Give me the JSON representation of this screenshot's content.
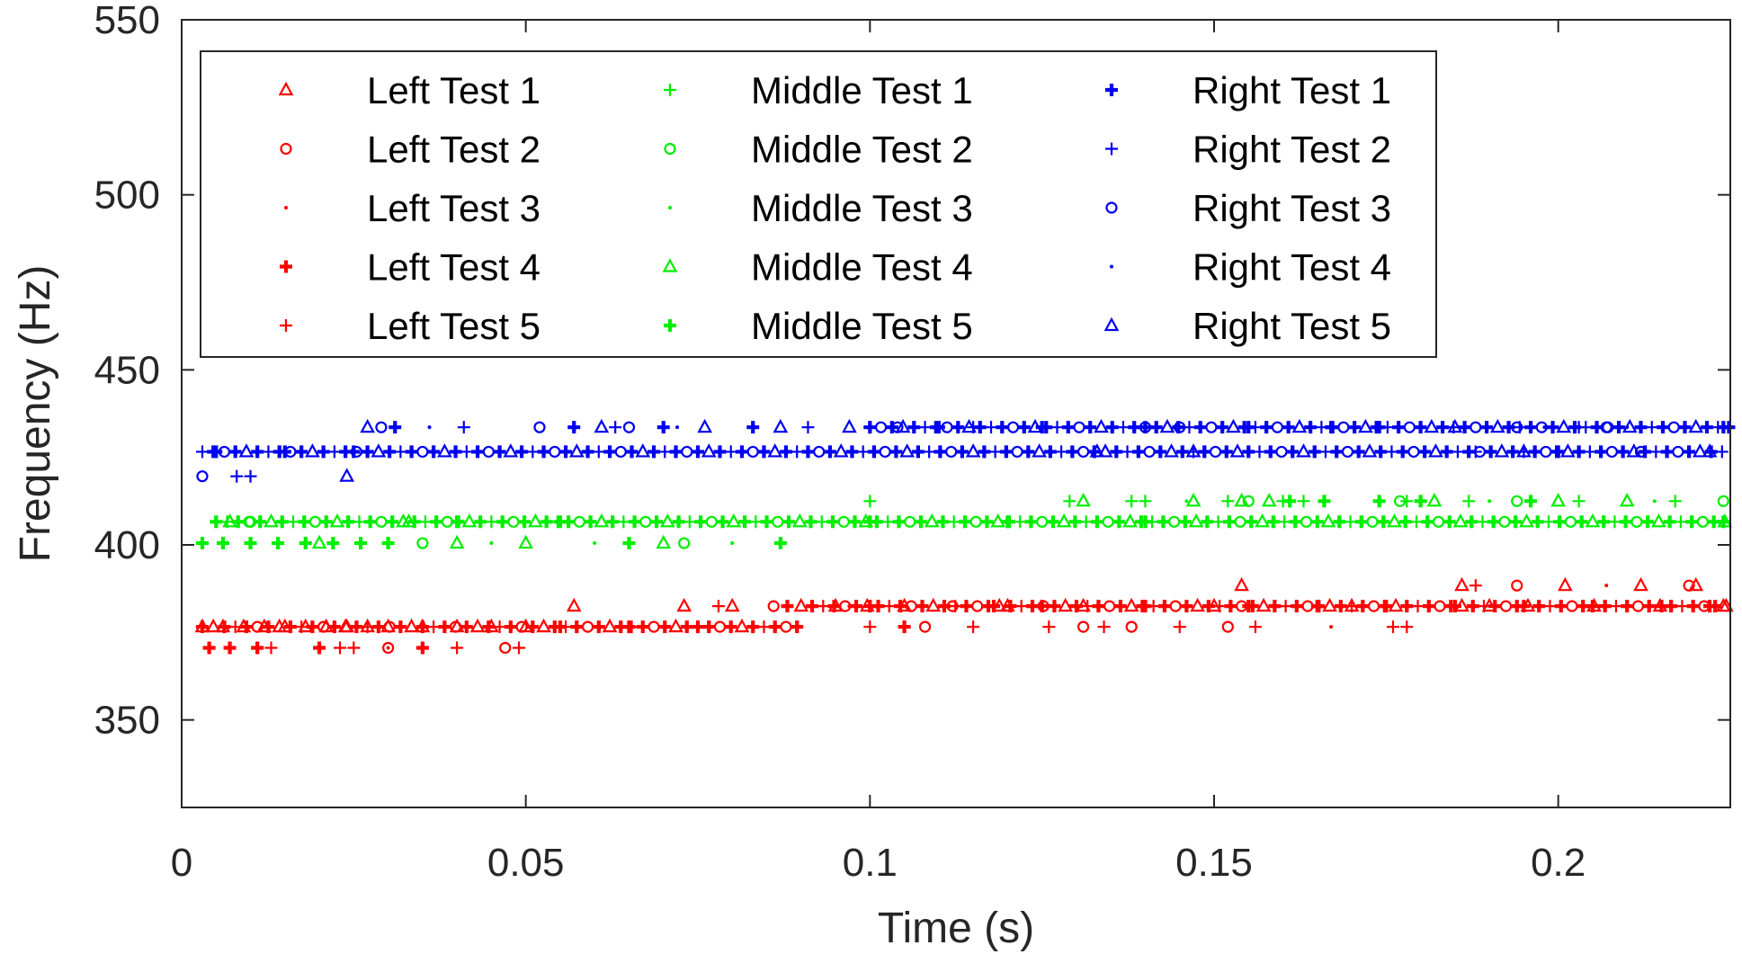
{
  "chart_data": {
    "type": "scatter",
    "title": "",
    "xlabel": "Time (s)",
    "ylabel": "Frequency (Hz)",
    "xlim": [
      0,
      0.225
    ],
    "ylim": [
      325,
      550
    ],
    "xticks": [
      0,
      0.05,
      0.1,
      0.15,
      0.2
    ],
    "xtick_labels": [
      "0",
      "0.05",
      "0.1",
      "0.15",
      "0.2"
    ],
    "yticks": [
      350,
      400,
      450,
      500,
      550
    ],
    "ytick_labels": [
      "350",
      "400",
      "450",
      "500",
      "550"
    ],
    "grid": false,
    "legend_position": "top-left, inside, 3 columns",
    "colors": {
      "left": "#ff0000",
      "middle": "#00ee00",
      "right": "#0000ee",
      "axis": "#262626"
    },
    "series": [
      {
        "name": "Left Test 1",
        "group": "left",
        "marker": "triangle",
        "x": [
          0.003,
          0.006,
          0.009,
          0.012,
          0.015,
          0.018,
          0.021,
          0.024,
          0.027,
          0.03,
          0.035,
          0.04,
          0.045,
          0.05,
          0.057,
          0.073,
          0.08,
          0.095,
          0.105,
          0.12,
          0.131,
          0.15,
          0.154,
          0.17,
          0.186,
          0.19,
          0.201,
          0.212,
          0.22,
          0.224
        ],
        "y": [
          376.6,
          376.6,
          376.6,
          376.6,
          376.6,
          376.6,
          376.6,
          376.6,
          376.6,
          376.6,
          376.6,
          376.6,
          376.6,
          376.6,
          382.5,
          382.5,
          382.5,
          382.5,
          382.5,
          382.5,
          382.5,
          382.5,
          388.4,
          382.5,
          388.4,
          382.5,
          388.4,
          388.4,
          388.4,
          382.5
        ]
      },
      {
        "name": "Left Test 2",
        "group": "left",
        "marker": "circle",
        "x": [
          0.03,
          0.047,
          0.086,
          0.108,
          0.112,
          0.131,
          0.138,
          0.152,
          0.194,
          0.219
        ],
        "y": [
          370.6,
          370.6,
          382.5,
          376.6,
          382.5,
          376.6,
          376.6,
          376.6,
          388.4,
          388.4
        ]
      },
      {
        "name": "Left Test 3",
        "group": "left",
        "marker": "point",
        "x": [
          0.03,
          0.097,
          0.117,
          0.129,
          0.143,
          0.167,
          0.207
        ],
        "y": [
          370.6,
          382.5,
          382.5,
          382.5,
          382.5,
          376.6,
          388.4
        ]
      },
      {
        "name": "Left Test 4",
        "group": "left",
        "marker": "plus-bold",
        "x": [
          0.004,
          0.007,
          0.011,
          0.02,
          0.035,
          0.055,
          0.065,
          0.075,
          0.088,
          0.1,
          0.105,
          0.118,
          0.125,
          0.14,
          0.155,
          0.165,
          0.175,
          0.185,
          0.195,
          0.205,
          0.215,
          0.222
        ],
        "y": [
          370.6,
          370.6,
          370.6,
          370.6,
          370.6,
          376.6,
          376.6,
          376.6,
          382.5,
          382.5,
          376.6,
          382.5,
          382.5,
          382.5,
          382.5,
          382.5,
          382.5,
          382.5,
          382.5,
          382.5,
          382.5,
          382.5
        ]
      },
      {
        "name": "Left Test 5",
        "group": "left",
        "marker": "plus",
        "x": [
          0.013,
          0.023,
          0.025,
          0.04,
          0.049,
          0.078,
          0.1,
          0.115,
          0.126,
          0.134,
          0.145,
          0.156,
          0.176,
          0.178,
          0.188
        ],
        "y": [
          370.6,
          370.6,
          370.6,
          370.6,
          370.6,
          382.5,
          376.6,
          376.6,
          376.6,
          376.6,
          376.6,
          376.6,
          376.6,
          376.6,
          388.4
        ]
      },
      {
        "name": "Middle Test 1",
        "group": "middle",
        "marker": "plus",
        "x": [
          0.1,
          0.129,
          0.138,
          0.14,
          0.152,
          0.16,
          0.163,
          0.178,
          0.187,
          0.203,
          0.217
        ],
        "y": [
          412.5,
          412.5,
          412.5,
          412.5,
          412.5,
          412.5,
          412.5,
          412.5,
          412.5,
          412.5,
          412.5
        ]
      },
      {
        "name": "Middle Test 2",
        "group": "middle",
        "marker": "circle",
        "x": [
          0.01,
          0.035,
          0.073,
          0.155,
          0.177,
          0.194,
          0.224
        ],
        "y": [
          406.6,
          400.5,
          400.5,
          412.5,
          412.5,
          412.5,
          412.5
        ]
      },
      {
        "name": "Middle Test 3",
        "group": "middle",
        "marker": "point",
        "x": [
          0.045,
          0.06,
          0.08,
          0.146,
          0.19,
          0.214
        ],
        "y": [
          400.5,
          400.5,
          400.5,
          412.5,
          412.5,
          412.5
        ]
      },
      {
        "name": "Middle Test 4",
        "group": "middle",
        "marker": "triangle",
        "x": [
          0.007,
          0.02,
          0.033,
          0.04,
          0.05,
          0.07,
          0.131,
          0.147,
          0.154,
          0.158,
          0.182,
          0.2,
          0.21
        ],
        "y": [
          406.6,
          400.5,
          406.6,
          400.5,
          400.5,
          400.5,
          412.5,
          412.5,
          412.5,
          412.5,
          412.5,
          412.5,
          412.5
        ]
      },
      {
        "name": "Middle Test 5",
        "group": "middle",
        "marker": "plus-bold",
        "x": [
          0.003,
          0.006,
          0.01,
          0.014,
          0.018,
          0.022,
          0.026,
          0.03,
          0.04,
          0.055,
          0.065,
          0.087,
          0.1,
          0.12,
          0.14,
          0.161,
          0.166,
          0.174,
          0.18,
          0.196,
          0.224
        ],
        "y": [
          400.5,
          400.5,
          400.5,
          400.5,
          400.5,
          400.5,
          400.5,
          400.5,
          406.6,
          406.6,
          400.5,
          400.5,
          406.6,
          406.6,
          406.6,
          412.5,
          412.5,
          412.5,
          412.5,
          412.5,
          406.6
        ]
      },
      {
        "name": "Right Test 1",
        "group": "right",
        "marker": "plus-bold",
        "x": [
          0.005,
          0.015,
          0.025,
          0.031,
          0.057,
          0.07,
          0.083,
          0.11,
          0.125,
          0.14,
          0.155,
          0.167,
          0.174,
          0.2,
          0.224
        ],
        "y": [
          426.6,
          426.6,
          426.6,
          433.6,
          433.6,
          433.6,
          433.6,
          433.6,
          433.6,
          433.6,
          433.6,
          433.6,
          433.6,
          426.6,
          433.6
        ]
      },
      {
        "name": "Right Test 2",
        "group": "right",
        "marker": "plus",
        "x": [
          0.008,
          0.01,
          0.041,
          0.063,
          0.091,
          0.1,
          0.115,
          0.188,
          0.203
        ],
        "y": [
          419.6,
          419.6,
          433.6,
          433.6,
          433.6,
          433.6,
          433.6,
          426.6,
          433.6
        ]
      },
      {
        "name": "Right Test 3",
        "group": "right",
        "marker": "circle",
        "x": [
          0.003,
          0.029,
          0.052,
          0.065,
          0.104,
          0.145,
          0.194,
          0.207,
          0.212
        ],
        "y": [
          419.6,
          433.6,
          433.6,
          433.6,
          433.6,
          433.6,
          433.6,
          433.6,
          426.6
        ]
      },
      {
        "name": "Right Test 4",
        "group": "right",
        "marker": "point",
        "x": [
          0.036,
          0.072,
          0.12,
          0.18,
          0.198,
          0.21
        ],
        "y": [
          433.6,
          433.6,
          433.6,
          426.6,
          433.6,
          433.6
        ]
      },
      {
        "name": "Right Test 5",
        "group": "right",
        "marker": "triangle",
        "x": [
          0.024,
          0.027,
          0.061,
          0.076,
          0.087,
          0.097,
          0.133,
          0.147,
          0.185,
          0.195,
          0.222
        ],
        "y": [
          419.6,
          433.6,
          433.6,
          433.6,
          433.6,
          433.6,
          426.6,
          426.6,
          433.6,
          426.6,
          426.6
        ]
      }
    ],
    "dense_bands": [
      {
        "group": "left",
        "y": 376.6,
        "x_start": 0.003,
        "x_end": 0.09,
        "step": 0.0016
      },
      {
        "group": "left",
        "y": 382.5,
        "x_start": 0.09,
        "x_end": 0.225,
        "step": 0.0016
      },
      {
        "group": "middle",
        "y": 406.6,
        "x_start": 0.005,
        "x_end": 0.225,
        "step": 0.0016
      },
      {
        "group": "right",
        "y": 426.6,
        "x_start": 0.003,
        "x_end": 0.225,
        "step": 0.0016
      },
      {
        "group": "right",
        "y": 433.6,
        "x_start": 0.1,
        "x_end": 0.225,
        "step": 0.0016
      }
    ]
  }
}
